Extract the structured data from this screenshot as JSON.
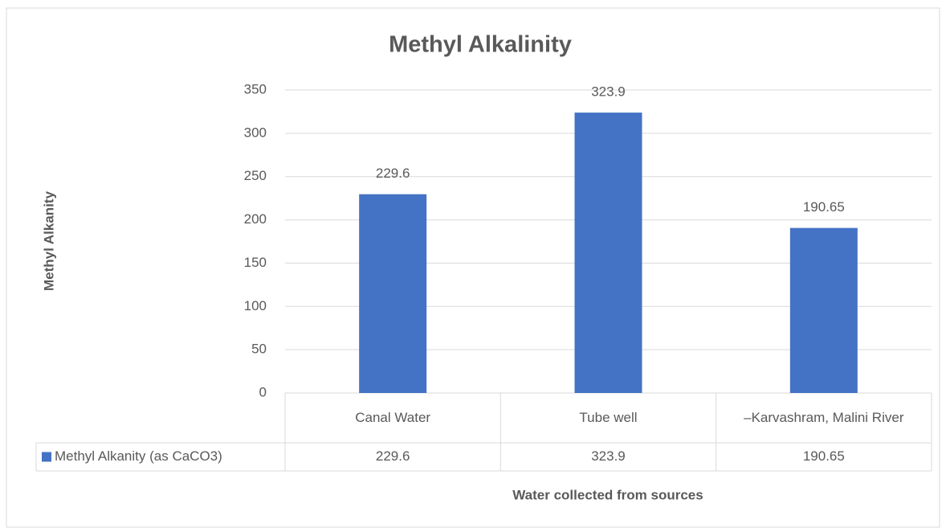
{
  "chart_data": {
    "type": "bar",
    "title": "Methyl Alkalinity",
    "x_label": "Water collected from sources",
    "y_label": "Methyl Alkanity",
    "categories": [
      "Canal Water",
      "Tube well",
      "–Karvashram, Malini River"
    ],
    "series": [
      {
        "name": "Methyl Alkanity (as CaCO3)",
        "color": "#4472c4",
        "values": [
          229.6,
          323.9,
          190.65
        ]
      }
    ],
    "ylim": [
      0,
      350
    ],
    "yticks": [
      0,
      50,
      100,
      150,
      200,
      250,
      300,
      350
    ],
    "grid": true,
    "data_table": true
  }
}
